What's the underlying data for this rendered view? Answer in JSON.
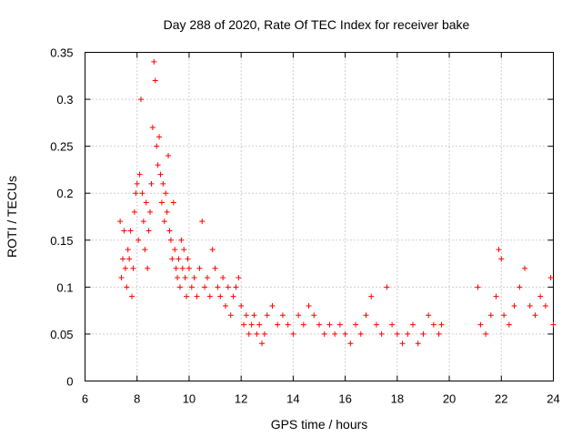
{
  "chart_data": {
    "type": "scatter",
    "title": "Day 288 of 2020, Rate Of TEC Index for receiver bake",
    "xlabel": "GPS time / hours",
    "ylabel": "ROTI / TECUs",
    "xlim": [
      6,
      24
    ],
    "ylim": [
      0,
      0.35
    ],
    "x_ticks": [
      "6",
      "8",
      "10",
      "12",
      "14",
      "16",
      "18",
      "20",
      "22",
      "24"
    ],
    "y_ticks": [
      "0",
      "0.05",
      "0.1",
      "0.15",
      "0.2",
      "0.25",
      "0.3",
      "0.35"
    ],
    "grid": true,
    "marker": "+",
    "color": "#ff0000",
    "series": [
      {
        "points": [
          [
            7.35,
            0.17
          ],
          [
            7.4,
            0.11
          ],
          [
            7.45,
            0.13
          ],
          [
            7.5,
            0.16
          ],
          [
            7.55,
            0.12
          ],
          [
            7.6,
            0.1
          ],
          [
            7.65,
            0.14
          ],
          [
            7.7,
            0.13
          ],
          [
            7.75,
            0.16
          ],
          [
            7.8,
            0.09
          ],
          [
            7.85,
            0.12
          ],
          [
            7.9,
            0.18
          ],
          [
            7.95,
            0.2
          ],
          [
            8.0,
            0.21
          ],
          [
            8.05,
            0.15
          ],
          [
            8.1,
            0.22
          ],
          [
            8.15,
            0.3
          ],
          [
            8.2,
            0.2
          ],
          [
            8.25,
            0.17
          ],
          [
            8.3,
            0.14
          ],
          [
            8.35,
            0.19
          ],
          [
            8.4,
            0.12
          ],
          [
            8.45,
            0.16
          ],
          [
            8.5,
            0.18
          ],
          [
            8.55,
            0.21
          ],
          [
            8.6,
            0.27
          ],
          [
            8.65,
            0.34
          ],
          [
            8.7,
            0.32
          ],
          [
            8.75,
            0.25
          ],
          [
            8.8,
            0.23
          ],
          [
            8.85,
            0.26
          ],
          [
            8.9,
            0.22
          ],
          [
            8.95,
            0.19
          ],
          [
            9.0,
            0.21
          ],
          [
            9.05,
            0.17
          ],
          [
            9.1,
            0.2
          ],
          [
            9.15,
            0.18
          ],
          [
            9.2,
            0.24
          ],
          [
            9.25,
            0.16
          ],
          [
            9.3,
            0.15
          ],
          [
            9.35,
            0.13
          ],
          [
            9.4,
            0.19
          ],
          [
            9.45,
            0.14
          ],
          [
            9.5,
            0.12
          ],
          [
            9.55,
            0.11
          ],
          [
            9.6,
            0.13
          ],
          [
            9.65,
            0.1
          ],
          [
            9.7,
            0.15
          ],
          [
            9.75,
            0.12
          ],
          [
            9.8,
            0.14
          ],
          [
            9.85,
            0.11
          ],
          [
            9.9,
            0.09
          ],
          [
            9.95,
            0.13
          ],
          [
            10.0,
            0.12
          ],
          [
            10.1,
            0.1
          ],
          [
            10.2,
            0.11
          ],
          [
            10.3,
            0.09
          ],
          [
            10.4,
            0.12
          ],
          [
            10.5,
            0.17
          ],
          [
            10.6,
            0.1
          ],
          [
            10.7,
            0.11
          ],
          [
            10.8,
            0.09
          ],
          [
            10.9,
            0.14
          ],
          [
            11.0,
            0.12
          ],
          [
            11.1,
            0.1
          ],
          [
            11.2,
            0.09
          ],
          [
            11.3,
            0.11
          ],
          [
            11.4,
            0.08
          ],
          [
            11.5,
            0.1
          ],
          [
            11.6,
            0.07
          ],
          [
            11.7,
            0.09
          ],
          [
            11.8,
            0.1
          ],
          [
            11.9,
            0.11
          ],
          [
            12.0,
            0.08
          ],
          [
            12.1,
            0.06
          ],
          [
            12.2,
            0.07
          ],
          [
            12.3,
            0.05
          ],
          [
            12.4,
            0.06
          ],
          [
            12.5,
            0.07
          ],
          [
            12.6,
            0.05
          ],
          [
            12.7,
            0.06
          ],
          [
            12.8,
            0.04
          ],
          [
            12.9,
            0.05
          ],
          [
            13.0,
            0.07
          ],
          [
            13.2,
            0.08
          ],
          [
            13.4,
            0.06
          ],
          [
            13.6,
            0.07
          ],
          [
            13.8,
            0.06
          ],
          [
            14.0,
            0.05
          ],
          [
            14.2,
            0.07
          ],
          [
            14.4,
            0.06
          ],
          [
            14.6,
            0.08
          ],
          [
            14.8,
            0.07
          ],
          [
            15.0,
            0.06
          ],
          [
            15.2,
            0.05
          ],
          [
            15.4,
            0.06
          ],
          [
            15.6,
            0.05
          ],
          [
            15.8,
            0.06
          ],
          [
            16.0,
            0.05
          ],
          [
            16.2,
            0.04
          ],
          [
            16.4,
            0.06
          ],
          [
            16.6,
            0.05
          ],
          [
            16.8,
            0.07
          ],
          [
            17.0,
            0.09
          ],
          [
            17.2,
            0.06
          ],
          [
            17.4,
            0.05
          ],
          [
            17.6,
            0.1
          ],
          [
            17.8,
            0.06
          ],
          [
            18.0,
            0.05
          ],
          [
            18.2,
            0.04
          ],
          [
            18.4,
            0.05
          ],
          [
            18.6,
            0.06
          ],
          [
            18.8,
            0.04
          ],
          [
            19.0,
            0.05
          ],
          [
            19.2,
            0.07
          ],
          [
            19.4,
            0.06
          ],
          [
            19.6,
            0.05
          ],
          [
            19.7,
            0.06
          ],
          [
            21.1,
            0.1
          ],
          [
            21.2,
            0.06
          ],
          [
            21.4,
            0.05
          ],
          [
            21.6,
            0.07
          ],
          [
            21.8,
            0.09
          ],
          [
            21.9,
            0.14
          ],
          [
            22.0,
            0.13
          ],
          [
            22.1,
            0.07
          ],
          [
            22.3,
            0.06
          ],
          [
            22.5,
            0.08
          ],
          [
            22.7,
            0.1
          ],
          [
            22.9,
            0.12
          ],
          [
            23.1,
            0.08
          ],
          [
            23.3,
            0.07
          ],
          [
            23.5,
            0.09
          ],
          [
            23.7,
            0.08
          ],
          [
            23.9,
            0.11
          ],
          [
            24.0,
            0.06
          ]
        ]
      }
    ]
  }
}
